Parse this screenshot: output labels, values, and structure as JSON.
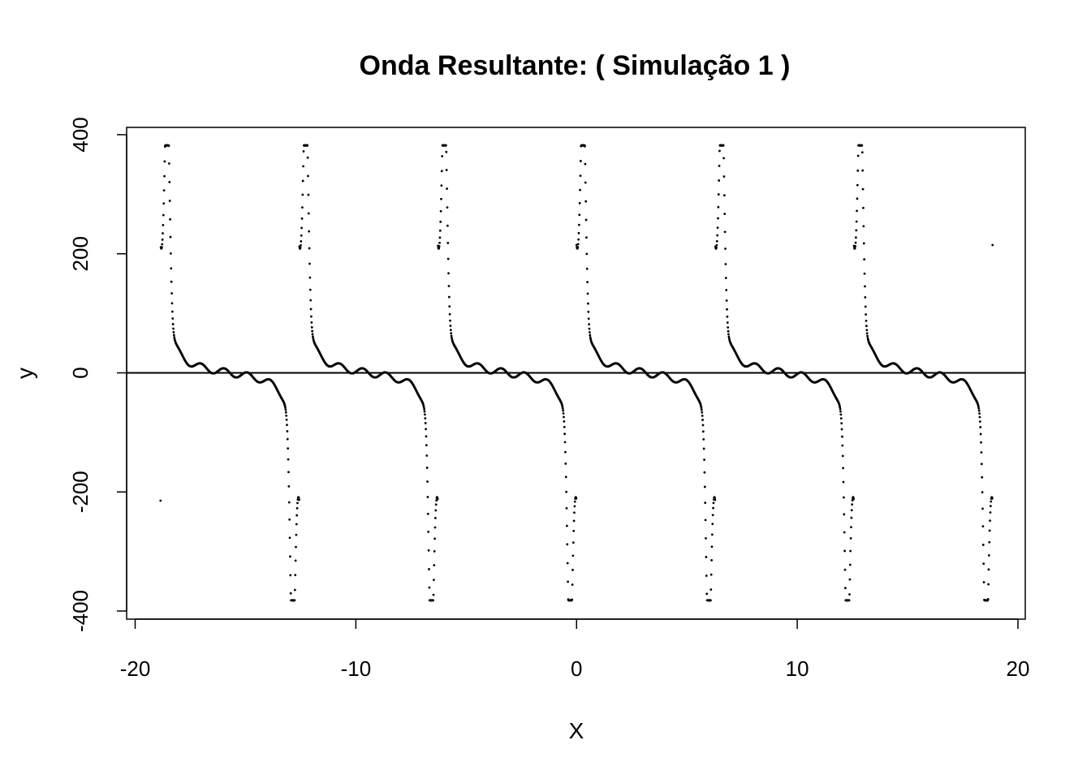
{
  "chart_data": {
    "type": "scatter",
    "title": "Onda Resultante: ( Simulação 1 )",
    "xlabel": "X",
    "ylabel": "y",
    "xlim": [
      -20.5,
      20.5
    ],
    "ylim": [
      -410,
      410
    ],
    "x_ticks": [
      -20,
      -10,
      0,
      10,
      20
    ],
    "x_tick_labels": [
      "-20",
      "-10",
      "0",
      "10",
      "20"
    ],
    "y_ticks": [
      -400,
      -200,
      0,
      200,
      400
    ],
    "y_tick_labels": [
      "-400",
      "-200",
      "0",
      "200",
      "400"
    ],
    "reference_line": {
      "y": 0
    },
    "grid": false,
    "legend": "none",
    "marker_color": "#000000",
    "series": [
      {
        "x_range": [
          -18.85,
          18.85
        ],
        "period": 6.2832,
        "peak_value": 382,
        "trough_value": -382,
        "peak_x": [
          -18.55,
          -12.25,
          -6.0,
          0.3,
          6.55,
          12.85
        ],
        "trough_x": [
          -12.85,
          -6.55,
          -0.3,
          6.0,
          12.25,
          18.55
        ],
        "zero_crossings_x": [
          -15.7,
          -9.42,
          -3.14,
          3.14,
          9.42,
          15.7
        ]
      }
    ]
  }
}
